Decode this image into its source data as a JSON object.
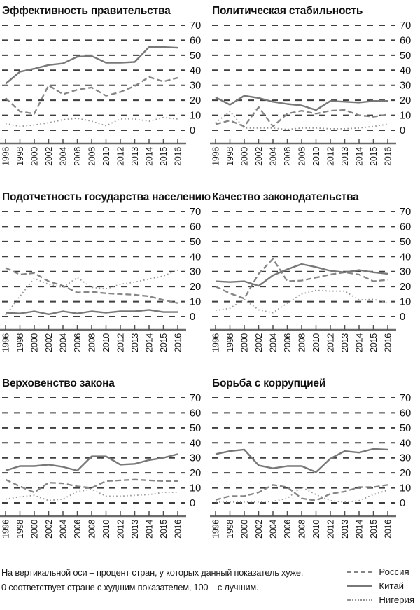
{
  "note": {
    "line1": "На вертикальной оси – процент стран, у которых данный показатель хуже.",
    "line2": "0 соответствует стране с худшим показателем, 100 – с лучшим."
  },
  "legend": [
    {
      "key": "russia",
      "label": "Россия",
      "style": "dashed"
    },
    {
      "key": "china",
      "label": "Китай",
      "style": "solid"
    },
    {
      "key": "nigeria",
      "label": "Нигерия",
      "style": "dotted"
    }
  ],
  "colors": {
    "background": "#ffffff",
    "text": "#111111",
    "grid": "#3f3f3f",
    "axis": "#6b6b6b",
    "series_dashed": "#858585",
    "series_solid": "#787878",
    "series_dotted": "#959595"
  },
  "axis": {
    "categories": [
      "1996",
      "1998",
      "2000",
      "2002",
      "2004",
      "2006",
      "2008",
      "2010",
      "2012",
      "2013",
      "2014",
      "2015",
      "2016"
    ],
    "ylim": [
      0,
      70
    ],
    "yticks": [
      0,
      10,
      20,
      30,
      40,
      50,
      60,
      70
    ],
    "grid": "dashed-horizontal",
    "ylabel_side": "right"
  },
  "chart_data": [
    {
      "type": "line",
      "title": "Эффективность правительства",
      "x": [
        "1996",
        "1998",
        "2000",
        "2002",
        "2004",
        "2006",
        "2008",
        "2010",
        "2012",
        "2013",
        "2014",
        "2015",
        "2016"
      ],
      "ylim": [
        0,
        70
      ],
      "series": [
        {
          "name": "Россия",
          "key": "russia",
          "style": "dashed",
          "values": [
            21.5,
            12.5,
            11,
            30,
            24,
            27,
            28.5,
            23,
            25.5,
            29.5,
            35.5,
            32.5,
            35
          ]
        },
        {
          "name": "Китай",
          "key": "china",
          "style": "solid",
          "values": [
            31,
            39,
            41,
            43.5,
            44.5,
            49,
            49.5,
            45,
            45,
            45.5,
            55.5,
            55.5,
            55
          ]
        },
        {
          "name": "Нигерия",
          "key": "nigeria",
          "style": "dotted",
          "values": [
            4.5,
            2.5,
            3.5,
            5,
            7,
            8,
            6,
            3,
            7.5,
            7.5,
            6,
            8.5,
            7.5
          ]
        }
      ]
    },
    {
      "type": "line",
      "title": "Политическая стабильность",
      "x": [
        "1996",
        "1998",
        "2000",
        "2002",
        "2004",
        "2006",
        "2008",
        "2010",
        "2012",
        "2013",
        "2014",
        "2015",
        "2016"
      ],
      "ylim": [
        0,
        70
      ],
      "series": [
        {
          "name": "Россия",
          "key": "russia",
          "style": "dashed",
          "values": [
            4,
            6.5,
            2.5,
            15.5,
            2.5,
            11,
            13,
            11,
            13,
            13.5,
            10,
            9,
            10.5
          ]
        },
        {
          "name": "Китай",
          "key": "china",
          "style": "solid",
          "values": [
            22,
            17,
            23,
            21.5,
            19,
            17.5,
            16.5,
            13.5,
            19.5,
            19,
            18.5,
            19.5,
            19.5
          ]
        },
        {
          "name": "Нигерия",
          "key": "nigeria",
          "style": "dotted",
          "values": [
            5,
            12.5,
            1.5,
            1.5,
            1.5,
            0.5,
            1.5,
            1.5,
            1,
            1,
            1.5,
            2.5,
            4
          ]
        }
      ]
    },
    {
      "type": "line",
      "title": "Подотчетность государства населению",
      "x": [
        "1996",
        "1998",
        "2000",
        "2002",
        "2004",
        "2006",
        "2008",
        "2010",
        "2012",
        "2013",
        "2014",
        "2015",
        "2016"
      ],
      "ylim": [
        0,
        70
      ],
      "series": [
        {
          "name": "Россия",
          "key": "russia",
          "style": "dashed",
          "values": [
            32.5,
            28,
            29,
            23.5,
            20.5,
            16,
            16.5,
            15.5,
            15,
            14.5,
            13.5,
            11,
            9
          ]
        },
        {
          "name": "Китай",
          "key": "china",
          "style": "solid",
          "values": [
            2.5,
            2,
            3.5,
            1.5,
            3.5,
            2,
            3.5,
            2.5,
            3.5,
            3.5,
            4.5,
            3,
            3
          ]
        },
        {
          "name": "Нигерия",
          "key": "nigeria",
          "style": "dotted",
          "values": [
            1,
            13.5,
            25.5,
            21.5,
            19.5,
            26,
            19.5,
            18.5,
            21.5,
            23,
            25,
            27,
            31
          ]
        }
      ]
    },
    {
      "type": "line",
      "title": "Качество законодательства",
      "x": [
        "1996",
        "1998",
        "2000",
        "2002",
        "2004",
        "2006",
        "2008",
        "2010",
        "2012",
        "2013",
        "2014",
        "2015",
        "2016"
      ],
      "ylim": [
        0,
        70
      ],
      "series": [
        {
          "name": "Россия",
          "key": "russia",
          "style": "dashed",
          "values": [
            20,
            15.5,
            12,
            28.5,
            38.5,
            23.5,
            24,
            26,
            28,
            29.5,
            28,
            23.5,
            24.5
          ]
        },
        {
          "name": "Китай",
          "key": "china",
          "style": "solid",
          "values": [
            23.5,
            23,
            23.5,
            20.5,
            27.5,
            31.5,
            35,
            33,
            30.5,
            29.5,
            31,
            29.5,
            28.5
          ]
        },
        {
          "name": "Нигерия",
          "key": "nigeria",
          "style": "dotted",
          "values": [
            4,
            5.5,
            11.5,
            4.5,
            2.5,
            9,
            15,
            17.5,
            17,
            17,
            11,
            11.5,
            9
          ]
        }
      ]
    },
    {
      "type": "line",
      "title": "Верховенство закона",
      "x": [
        "1996",
        "1998",
        "2000",
        "2002",
        "2004",
        "2006",
        "2008",
        "2010",
        "2012",
        "2013",
        "2014",
        "2015",
        "2016"
      ],
      "ylim": [
        0,
        70
      ],
      "series": [
        {
          "name": "Россия",
          "key": "russia",
          "style": "dashed",
          "values": [
            15.5,
            11,
            7,
            13.5,
            13,
            11,
            10,
            14.5,
            15,
            15.5,
            15,
            14.5,
            14.5
          ]
        },
        {
          "name": "Китай",
          "key": "china",
          "style": "solid",
          "values": [
            21.5,
            24.5,
            24.5,
            25.5,
            24,
            21.5,
            31,
            31,
            25.5,
            26,
            28.5,
            30,
            32.5
          ]
        },
        {
          "name": "Нигерия",
          "key": "nigeria",
          "style": "dotted",
          "values": [
            2.5,
            4,
            5,
            1.5,
            2.5,
            7.5,
            9,
            4.5,
            4.5,
            5,
            5.5,
            7,
            7
          ]
        }
      ]
    },
    {
      "type": "line",
      "title": "Борьба с коррупцией",
      "x": [
        "1996",
        "1998",
        "2000",
        "2002",
        "2004",
        "2006",
        "2008",
        "2010",
        "2012",
        "2013",
        "2014",
        "2015",
        "2016"
      ],
      "ylim": [
        0,
        70
      ],
      "series": [
        {
          "name": "Россия",
          "key": "russia",
          "style": "dashed",
          "values": [
            2,
            4.5,
            4.5,
            7,
            12,
            10.5,
            3,
            1.5,
            6,
            7.5,
            10.5,
            10.5,
            12
          ]
        },
        {
          "name": "Китай",
          "key": "china",
          "style": "solid",
          "values": [
            32.5,
            34.5,
            35.5,
            25,
            23,
            24.5,
            24.5,
            20.5,
            29.5,
            34.5,
            33.5,
            36,
            35.5
          ]
        },
        {
          "name": "Нигерия",
          "key": "nigeria",
          "style": "dotted",
          "values": [
            0.5,
            0.5,
            0.5,
            0.5,
            1,
            3,
            10.5,
            5.5,
            1.5,
            0.5,
            1.5,
            5.5,
            8.5
          ]
        }
      ]
    }
  ]
}
